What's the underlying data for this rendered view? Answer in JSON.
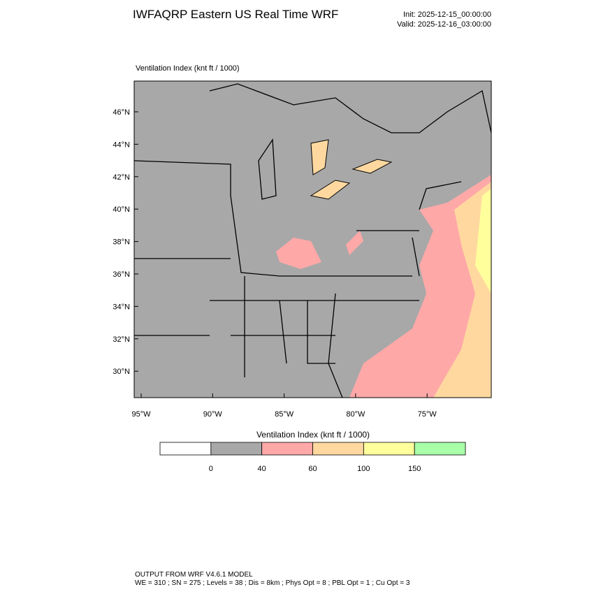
{
  "header": {
    "title": "IWFAQRP Eastern US Real Time WRF",
    "init": "Init: 2025-12-15_00:00:00",
    "valid": "Valid: 2025-12-16_03:00:00"
  },
  "map": {
    "subtitle": "Ventilation Index   (knt ft / 1000)",
    "lat_labels": [
      "46°N",
      "44°N",
      "42°N",
      "40°N",
      "38°N",
      "36°N",
      "34°N",
      "32°N",
      "30°N"
    ],
    "lon_labels": [
      "95°W",
      "90°W",
      "85°W",
      "80°W",
      "75°W"
    ]
  },
  "colorbar": {
    "title": "Ventilation Index  (knt ft / 1000)",
    "colors": [
      "#ffffff",
      "#a8a8a8",
      "#ffa8a8",
      "#ffd8a0",
      "#ffff9c",
      "#a8ffa8"
    ],
    "levels": [
      0,
      40,
      60,
      100,
      150
    ]
  },
  "footer": {
    "line1": "OUTPUT FROM WRF V4.6.1 MODEL",
    "line2": "WE = 310 ; SN = 275 ; Levels = 38 ; Dis = 8km ; Phys Opt = 8 ; PBL Opt = 1 ; Cu Opt = 3"
  }
}
